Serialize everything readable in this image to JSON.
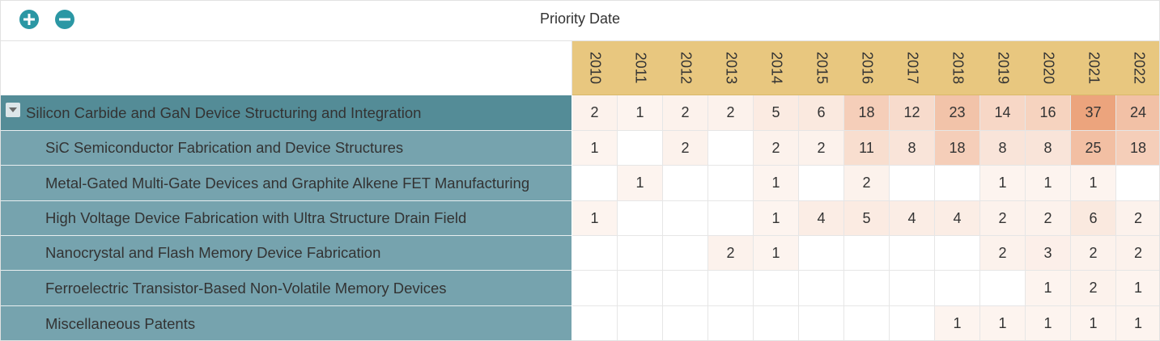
{
  "header": {
    "title": "Priority Date"
  },
  "toolbar": {
    "expand_icon": "plus-circle-icon",
    "collapse_icon": "minus-circle-icon"
  },
  "colors": {
    "header_bg": "#e8c77f",
    "parent_bg": "#548c97",
    "child_bg": "#76a3ae",
    "accent": "#2b97a4"
  },
  "years": [
    "2010",
    "2011",
    "2012",
    "2013",
    "2014",
    "2015",
    "2016",
    "2017",
    "2018",
    "2019",
    "2020",
    "2021",
    "2022"
  ],
  "rows": [
    {
      "label": "Silicon Carbide and GaN Device Structuring and Integration",
      "level": 0,
      "expanded": true,
      "values": [
        2,
        1,
        2,
        2,
        5,
        6,
        18,
        12,
        23,
        14,
        16,
        37,
        24
      ]
    },
    {
      "label": "SiC Semiconductor Fabrication and Device Structures",
      "level": 1,
      "values": [
        1,
        null,
        2,
        null,
        2,
        2,
        11,
        8,
        18,
        8,
        8,
        25,
        18
      ]
    },
    {
      "label": "Metal-Gated Multi-Gate Devices and Graphite Alkene FET Manufacturing",
      "level": 1,
      "values": [
        null,
        1,
        null,
        null,
        1,
        null,
        2,
        null,
        null,
        1,
        1,
        1,
        null
      ]
    },
    {
      "label": "High Voltage Device Fabrication with Ultra Structure Drain Field",
      "level": 1,
      "values": [
        1,
        null,
        null,
        null,
        1,
        4,
        5,
        4,
        4,
        2,
        2,
        6,
        2
      ]
    },
    {
      "label": "Nanocrystal and Flash Memory Device Fabrication",
      "level": 1,
      "values": [
        null,
        null,
        null,
        2,
        1,
        null,
        null,
        null,
        null,
        2,
        3,
        2,
        2
      ]
    },
    {
      "label": "Ferroelectric Transistor-Based Non-Volatile Memory Devices",
      "level": 1,
      "values": [
        null,
        null,
        null,
        null,
        null,
        null,
        null,
        null,
        null,
        null,
        1,
        2,
        1
      ]
    },
    {
      "label": "Miscellaneous Patents",
      "level": 1,
      "values": [
        null,
        null,
        null,
        null,
        null,
        null,
        null,
        null,
        1,
        1,
        1,
        1,
        1
      ]
    }
  ]
}
